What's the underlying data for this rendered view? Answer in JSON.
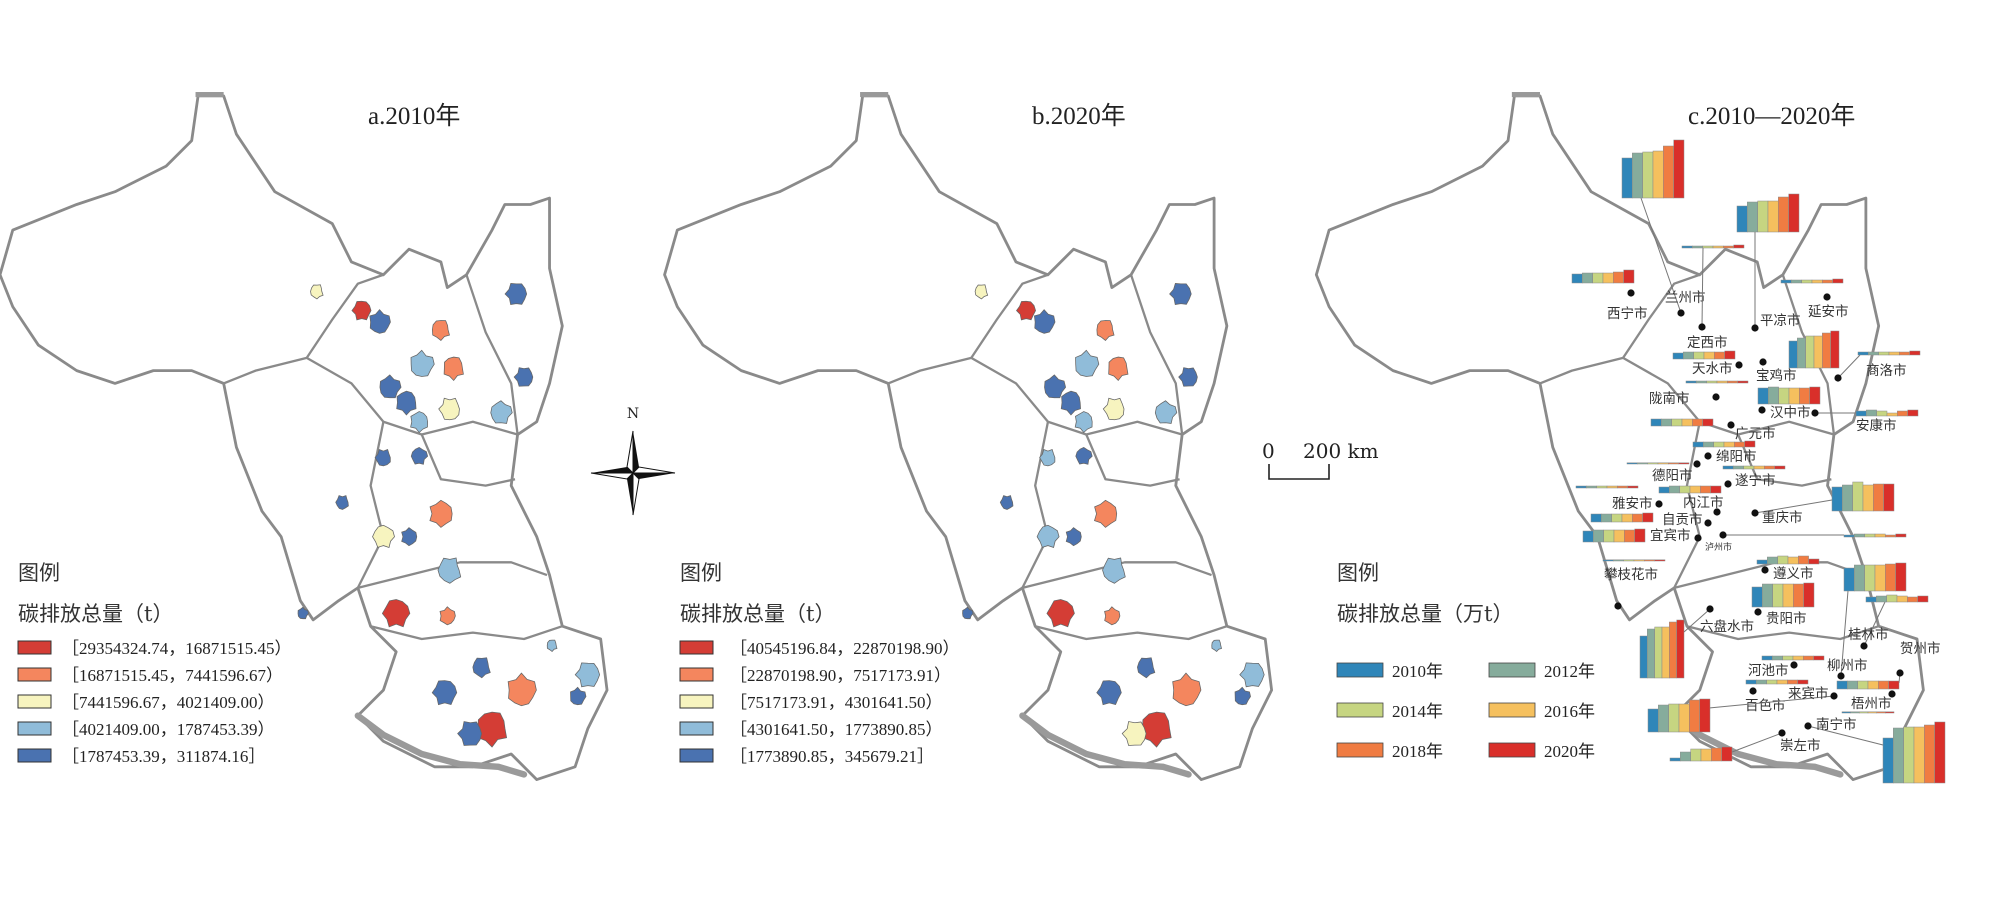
{
  "class_colors": [
    "#d43d35",
    "#f4865e",
    "#f7f4bf",
    "#90bcd9",
    "#4a72b0"
  ],
  "panels": [
    {
      "title": "a.2010年",
      "legend": {
        "title": "图例",
        "subtitle": "碳排放总量（t）",
        "classes": [
          {
            "range": "［29354324.74，16871515.45）"
          },
          {
            "range": "［16871515.45，7441596.67）"
          },
          {
            "range": "［7441596.67，4021409.00）"
          },
          {
            "range": "［4021409.00，1787453.39）"
          },
          {
            "range": "［1787453.39，311874.16］"
          }
        ]
      },
      "region_classes": [
        2,
        0,
        4,
        1,
        4,
        3,
        1,
        4,
        4,
        4,
        2,
        3,
        3,
        4,
        4,
        1,
        4,
        2,
        4,
        3,
        0,
        1,
        4,
        4,
        1,
        3,
        3,
        4,
        0,
        4,
        4
      ]
    },
    {
      "title": "b.2020年",
      "legend": {
        "title": "图例",
        "subtitle": "碳排放总量（t）",
        "classes": [
          {
            "range": "［40545196.84，22870198.90）"
          },
          {
            "range": "［22870198.90，7517173.91）"
          },
          {
            "range": "［7517173.91，4301641.50）"
          },
          {
            "range": "［4301641.50，1773890.85）"
          },
          {
            "range": "［1773890.85，345679.21］"
          }
        ]
      },
      "region_classes": [
        2,
        0,
        4,
        1,
        4,
        3,
        1,
        4,
        4,
        4,
        2,
        3,
        3,
        3,
        4,
        1,
        4,
        3,
        4,
        3,
        0,
        1,
        4,
        4,
        1,
        3,
        3,
        4,
        0,
        2,
        4
      ]
    }
  ],
  "panel_c": {
    "title": "c.2010—2020年",
    "legend": {
      "title": "图例",
      "subtitle": "碳排放总量（万t）",
      "years": [
        {
          "label": "2010年",
          "color": "#2f86b9"
        },
        {
          "label": "2012年",
          "color": "#86ac9c"
        },
        {
          "label": "2014年",
          "color": "#c6d581"
        },
        {
          "label": "2016年",
          "color": "#f5c05e"
        },
        {
          "label": "2018年",
          "color": "#f07c42"
        },
        {
          "label": "2020年",
          "color": "#d92f2a"
        }
      ]
    },
    "cities": [
      {
        "name": "西宁市",
        "relative_values": [
          9,
          10,
          10,
          10,
          11,
          13
        ]
      },
      {
        "name": "兰州市",
        "relative_values": [
          40,
          45,
          46,
          47,
          52,
          58
        ]
      },
      {
        "name": "定西市",
        "relative_values": [
          2,
          2,
          2,
          2,
          2,
          3
        ]
      },
      {
        "name": "平凉市",
        "relative_values": [
          26,
          30,
          31,
          31,
          35,
          38
        ]
      },
      {
        "name": "延安市",
        "relative_values": [
          3,
          3,
          3,
          3,
          3,
          4
        ]
      },
      {
        "name": "天水市",
        "relative_values": [
          6,
          7,
          7,
          7,
          7,
          8
        ]
      },
      {
        "name": "宝鸡市",
        "relative_values": [
          27,
          30,
          32,
          32,
          35,
          37
        ]
      },
      {
        "name": "商洛市",
        "relative_values": [
          3,
          3,
          3,
          3,
          3,
          4
        ]
      },
      {
        "name": "陇南市",
        "relative_values": [
          2,
          2,
          2,
          2,
          2,
          2
        ]
      },
      {
        "name": "汉中市",
        "relative_values": [
          16,
          17,
          16,
          16,
          16,
          17
        ]
      },
      {
        "name": "安康市",
        "relative_values": [
          5,
          6,
          5,
          3,
          5,
          6
        ]
      },
      {
        "name": "广元市",
        "relative_values": [
          7,
          7,
          7,
          7,
          7,
          7
        ]
      },
      {
        "name": "绵阳市",
        "relative_values": [
          5,
          5,
          5,
          5,
          5,
          6
        ]
      },
      {
        "name": "德阳市",
        "relative_values": [
          1,
          1,
          1,
          1,
          1,
          1
        ]
      },
      {
        "name": "遂宁市",
        "relative_values": [
          3,
          3,
          3,
          3,
          3,
          3
        ]
      },
      {
        "name": "雅安市",
        "relative_values": [
          2,
          2,
          2,
          2,
          2,
          2
        ]
      },
      {
        "name": "内江市",
        "relative_values": [
          6,
          7,
          7,
          7,
          7,
          7
        ]
      },
      {
        "name": "自贡市",
        "relative_values": [
          8,
          8,
          8,
          8,
          8,
          9
        ]
      },
      {
        "name": "宜宾市",
        "relative_values": [
          11,
          12,
          12,
          12,
          12,
          13
        ]
      },
      {
        "name": "泸州市",
        "relative_values": [
          2,
          3,
          3,
          3,
          2,
          3
        ]
      },
      {
        "name": "重庆市",
        "relative_values": [
          24,
          26,
          29,
          26,
          27,
          27
        ]
      },
      {
        "name": "攀枝花市",
        "relative_values": [
          1,
          1,
          1,
          1,
          1,
          1
        ]
      },
      {
        "name": "遵义市",
        "relative_values": [
          4,
          7,
          8,
          7,
          8,
          5
        ]
      },
      {
        "name": "贵阳市",
        "relative_values": [
          20,
          23,
          23,
          23,
          23,
          24
        ]
      },
      {
        "name": "六盘水市",
        "relative_values": [
          42,
          49,
          51,
          51,
          56,
          58
        ]
      },
      {
        "name": "柳州市",
        "relative_values": [
          23,
          26,
          26,
          26,
          27,
          28
        ]
      },
      {
        "name": "桂林市",
        "relative_values": [
          5,
          6,
          7,
          6,
          5,
          6
        ]
      },
      {
        "name": "贺州市",
        "relative_values": [
          8,
          8,
          8,
          8,
          8,
          8
        ]
      },
      {
        "name": "河池市",
        "relative_values": [
          4,
          4,
          4,
          4,
          4,
          4
        ]
      },
      {
        "name": "百色市",
        "relative_values": [
          4,
          4,
          4,
          4,
          4,
          4
        ]
      },
      {
        "name": "来宾市",
        "relative_values": [
          23,
          27,
          28,
          28,
          32,
          33
        ]
      },
      {
        "name": "梧州市",
        "relative_values": [
          1,
          1,
          1,
          1,
          1,
          1
        ]
      },
      {
        "name": "南宁市",
        "relative_values": [
          45,
          55,
          56,
          56,
          58,
          61
        ]
      },
      {
        "name": "崇左市",
        "relative_values": [
          3,
          9,
          12,
          12,
          13,
          14
        ]
      }
    ]
  },
  "compass": {
    "label": "N"
  },
  "scale_bar": {
    "zero": "0",
    "label": "200 km"
  }
}
